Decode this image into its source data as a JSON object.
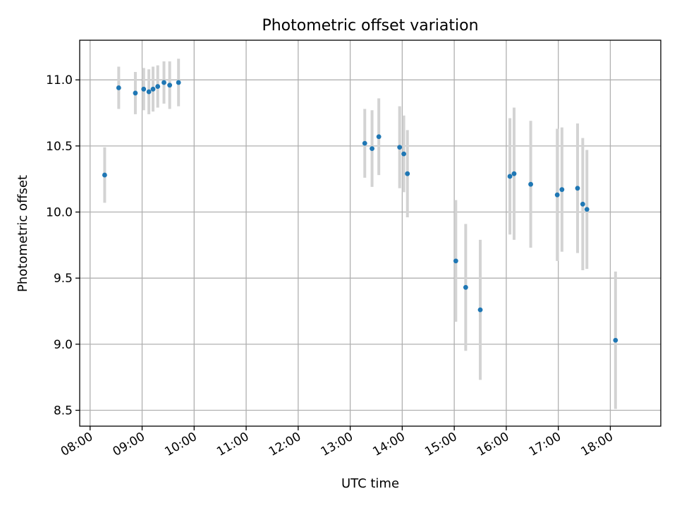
{
  "chart_data": {
    "type": "scatter",
    "title": "Photometric offset variation",
    "xlabel": "UTC time",
    "ylabel": "Photometric offset",
    "x_unit": "hours UTC",
    "xlim": [
      7.8,
      18.97
    ],
    "ylim": [
      8.38,
      11.3
    ],
    "x_ticks": [
      8,
      9,
      10,
      11,
      12,
      13,
      14,
      15,
      16,
      17,
      18
    ],
    "x_tick_labels": [
      "08:00",
      "09:00",
      "10:00",
      "11:00",
      "12:00",
      "13:00",
      "14:00",
      "15:00",
      "16:00",
      "17:00",
      "18:00"
    ],
    "y_ticks": [
      8.5,
      9.0,
      9.5,
      10.0,
      10.5,
      11.0
    ],
    "y_tick_labels": [
      "8.5",
      "9.0",
      "9.5",
      "10.0",
      "10.5",
      "11.0"
    ],
    "grid": true,
    "legend": "none",
    "colors": {
      "points": "#1f77b4",
      "error_bars": "#d3d3d3",
      "grid": "#b0b0b0"
    },
    "series": [
      {
        "points": [
          {
            "x": 8.28,
            "y": 10.28,
            "err": 0.21
          },
          {
            "x": 8.55,
            "y": 10.94,
            "err": 0.16
          },
          {
            "x": 8.87,
            "y": 10.9,
            "err": 0.16
          },
          {
            "x": 9.03,
            "y": 10.93,
            "err": 0.16
          },
          {
            "x": 9.13,
            "y": 10.91,
            "err": 0.17
          },
          {
            "x": 9.21,
            "y": 10.93,
            "err": 0.17
          },
          {
            "x": 9.3,
            "y": 10.95,
            "err": 0.16
          },
          {
            "x": 9.42,
            "y": 10.98,
            "err": 0.16
          },
          {
            "x": 9.53,
            "y": 10.96,
            "err": 0.18
          },
          {
            "x": 9.7,
            "y": 10.98,
            "err": 0.18
          },
          {
            "x": 13.28,
            "y": 10.52,
            "err": 0.26
          },
          {
            "x": 13.42,
            "y": 10.48,
            "err": 0.29
          },
          {
            "x": 13.55,
            "y": 10.57,
            "err": 0.29
          },
          {
            "x": 13.95,
            "y": 10.49,
            "err": 0.31
          },
          {
            "x": 14.03,
            "y": 10.44,
            "err": 0.29
          },
          {
            "x": 14.1,
            "y": 10.29,
            "err": 0.33
          },
          {
            "x": 15.03,
            "y": 9.63,
            "err": 0.46
          },
          {
            "x": 15.22,
            "y": 9.43,
            "err": 0.48
          },
          {
            "x": 15.5,
            "y": 9.26,
            "err": 0.53
          },
          {
            "x": 16.07,
            "y": 10.27,
            "err": 0.44
          },
          {
            "x": 16.15,
            "y": 10.29,
            "err": 0.5
          },
          {
            "x": 16.47,
            "y": 10.21,
            "err": 0.48
          },
          {
            "x": 16.98,
            "y": 10.13,
            "err": 0.5
          },
          {
            "x": 17.07,
            "y": 10.17,
            "err": 0.47
          },
          {
            "x": 17.37,
            "y": 10.18,
            "err": 0.49
          },
          {
            "x": 17.47,
            "y": 10.06,
            "err": 0.5
          },
          {
            "x": 17.55,
            "y": 10.02,
            "err": 0.45
          },
          {
            "x": 18.1,
            "y": 9.03,
            "err": 0.52
          }
        ]
      }
    ]
  }
}
